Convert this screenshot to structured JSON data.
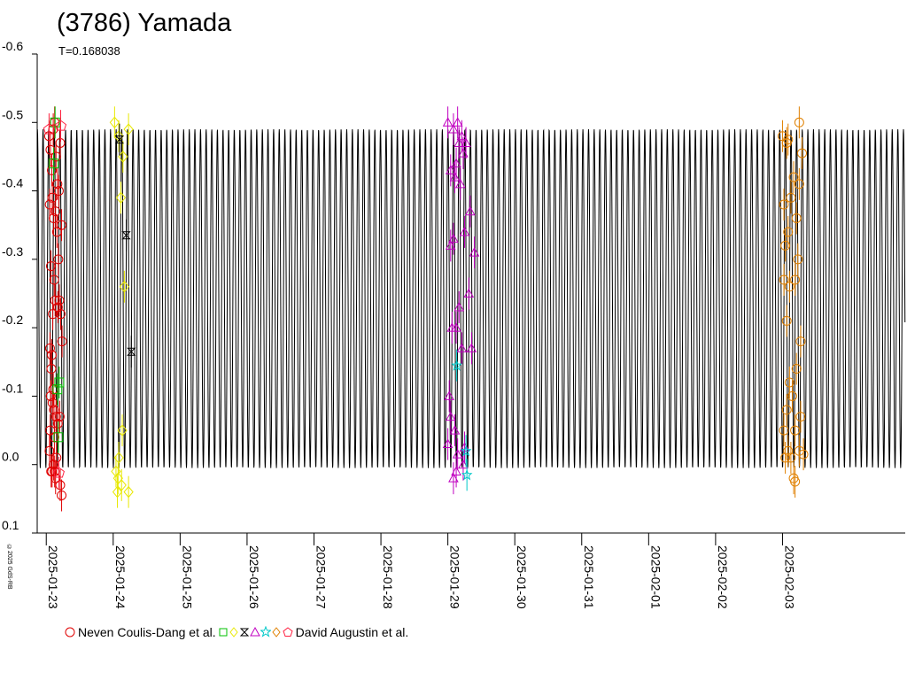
{
  "chart_data": {
    "type": "scatter",
    "title": "(3786) Yamada",
    "subtitle": "T=0.168038",
    "period_days": 0.168038,
    "x_domain": [
      "2025-01-22T20:45",
      "2025-02-04T20:00"
    ],
    "y_domain": [
      -0.6,
      0.1
    ],
    "y_ticks": [
      {
        "value": -0.6,
        "label": "-0.6"
      },
      {
        "value": -0.5,
        "label": "-0.5"
      },
      {
        "value": -0.4,
        "label": "-0.4"
      },
      {
        "value": -0.3,
        "label": "-0.3"
      },
      {
        "value": -0.2,
        "label": "-0.2"
      },
      {
        "value": -0.1,
        "label": "-0.1"
      },
      {
        "value": 0.0,
        "label": "0.0"
      },
      {
        "value": 0.1,
        "label": "0.1"
      }
    ],
    "x_ticks": [
      "2025-01-23",
      "2025-01-24",
      "2025-01-25",
      "2025-01-26",
      "2025-01-27",
      "2025-01-28",
      "2025-01-29",
      "2025-01-30",
      "2025-01-31",
      "2025-02-01",
      "2025-02-02",
      "2025-02-03"
    ],
    "model_curve": {
      "min": -0.49,
      "max": 0.005,
      "start": "2025-01-22T20:50",
      "end": "2025-02-04T19:55"
    },
    "series": [
      {
        "marker": "circle",
        "color": "#e00000",
        "points": [
          [
            "2025-01-23T01:00",
            -0.48
          ],
          [
            "2025-01-23T01:30",
            -0.46
          ],
          [
            "2025-01-23T02:00",
            -0.43
          ],
          [
            "2025-01-23T02:30",
            -0.49
          ],
          [
            "2025-01-23T03:00",
            -0.5
          ],
          [
            "2025-01-23T03:30",
            -0.45
          ],
          [
            "2025-01-23T04:00",
            -0.41
          ],
          [
            "2025-01-23T04:30",
            -0.4
          ],
          [
            "2025-01-23T05:00",
            -0.47
          ],
          [
            "2025-01-23T05:30",
            -0.35
          ],
          [
            "2025-01-23T01:15",
            -0.38
          ],
          [
            "2025-01-23T02:10",
            -0.39
          ],
          [
            "2025-01-23T02:40",
            -0.36
          ],
          [
            "2025-01-23T03:20",
            -0.37
          ],
          [
            "2025-01-23T03:50",
            -0.34
          ],
          [
            "2025-01-23T04:20",
            -0.3
          ],
          [
            "2025-01-23T01:40",
            -0.29
          ],
          [
            "2025-01-23T02:50",
            -0.27
          ],
          [
            "2025-01-23T03:10",
            -0.24
          ],
          [
            "2025-01-23T04:10",
            -0.23
          ],
          [
            "2025-01-23T02:20",
            -0.22
          ],
          [
            "2025-01-23T04:40",
            -0.24
          ],
          [
            "2025-01-23T05:10",
            -0.22
          ],
          [
            "2025-01-23T05:40",
            -0.18
          ],
          [
            "2025-01-23T01:20",
            -0.17
          ],
          [
            "2025-01-23T02:00",
            -0.16
          ],
          [
            "2025-01-23T01:50",
            -0.14
          ],
          [
            "2025-01-23T02:30",
            -0.11
          ],
          [
            "2025-01-23T01:35",
            -0.1
          ],
          [
            "2025-01-23T02:15",
            -0.09
          ],
          [
            "2025-01-23T02:45",
            -0.08
          ],
          [
            "2025-01-23T03:30",
            -0.07
          ],
          [
            "2025-01-23T04:10",
            -0.06
          ],
          [
            "2025-01-23T04:50",
            -0.07
          ],
          [
            "2025-01-23T01:25",
            -0.05
          ],
          [
            "2025-01-23T02:55",
            -0.04
          ],
          [
            "2025-01-23T01:10",
            -0.02
          ],
          [
            "2025-01-23T03:40",
            -0.01
          ],
          [
            "2025-01-23T01:45",
            0.01
          ],
          [
            "2025-01-23T02:05",
            0.01
          ],
          [
            "2025-01-23T02:35",
            0.0
          ],
          [
            "2025-01-23T03:00",
            0.01
          ],
          [
            "2025-01-23T03:20",
            0.02
          ],
          [
            "2025-01-23T05:00",
            0.03
          ],
          [
            "2025-01-23T05:30",
            0.045
          ]
        ]
      },
      {
        "marker": "square",
        "color": "#00c000",
        "points": [
          [
            "2025-01-23T03:10",
            -0.5
          ],
          [
            "2025-01-23T02:40",
            -0.44
          ],
          [
            "2025-01-23T04:00",
            -0.11
          ],
          [
            "2025-01-23T04:40",
            -0.12
          ],
          [
            "2025-01-23T04:20",
            -0.04
          ]
        ]
      },
      {
        "marker": "diamond",
        "color": "#e8e800",
        "points": [
          [
            "2025-01-24T00:30",
            -0.5
          ],
          [
            "2025-01-24T02:00",
            -0.48
          ],
          [
            "2025-01-24T03:30",
            -0.45
          ],
          [
            "2025-01-24T05:30",
            -0.49
          ],
          [
            "2025-01-24T02:45",
            -0.39
          ],
          [
            "2025-01-24T04:00",
            -0.26
          ],
          [
            "2025-01-24T03:15",
            -0.05
          ],
          [
            "2025-01-24T02:00",
            -0.01
          ],
          [
            "2025-01-24T01:00",
            0.01
          ],
          [
            "2025-01-24T01:45",
            0.02
          ],
          [
            "2025-01-24T03:00",
            0.03
          ],
          [
            "2025-01-24T01:30",
            0.04
          ],
          [
            "2025-01-24T05:30",
            0.04
          ]
        ]
      },
      {
        "marker": "hourglass",
        "color": "#000000",
        "points": [
          [
            "2025-01-24T02:15",
            -0.475
          ],
          [
            "2025-01-24T04:40",
            -0.335
          ],
          [
            "2025-01-24T06:30",
            -0.165
          ]
        ]
      },
      {
        "marker": "triangle",
        "color": "#c000c0",
        "points": [
          [
            "2025-01-29T00:00",
            -0.5
          ],
          [
            "2025-01-29T02:00",
            -0.49
          ],
          [
            "2025-01-29T03:30",
            -0.5
          ],
          [
            "2025-01-29T05:00",
            -0.48
          ],
          [
            "2025-01-29T06:30",
            -0.47
          ],
          [
            "2025-01-29T04:00",
            -0.47
          ],
          [
            "2025-01-29T05:30",
            -0.455
          ],
          [
            "2025-01-29T03:00",
            -0.44
          ],
          [
            "2025-01-29T01:00",
            -0.43
          ],
          [
            "2025-01-29T02:30",
            -0.42
          ],
          [
            "2025-01-29T04:30",
            -0.41
          ],
          [
            "2025-01-29T08:00",
            -0.37
          ],
          [
            "2025-01-29T02:00",
            -0.33
          ],
          [
            "2025-01-29T06:00",
            -0.34
          ],
          [
            "2025-01-29T01:00",
            -0.32
          ],
          [
            "2025-01-29T09:30",
            -0.31
          ],
          [
            "2025-01-29T07:30",
            -0.25
          ],
          [
            "2025-01-29T04:00",
            -0.23
          ],
          [
            "2025-01-29T01:30",
            -0.2
          ],
          [
            "2025-01-29T03:00",
            -0.2
          ],
          [
            "2025-01-29T05:00",
            -0.17
          ],
          [
            "2025-01-29T08:30",
            -0.17
          ],
          [
            "2025-01-29T00:30",
            -0.1
          ],
          [
            "2025-01-29T01:00",
            -0.07
          ],
          [
            "2025-01-29T02:30",
            -0.05
          ],
          [
            "2025-01-29T00:00",
            -0.03
          ],
          [
            "2025-01-29T06:00",
            -0.025
          ],
          [
            "2025-01-29T03:30",
            -0.015
          ],
          [
            "2025-01-29T05:30",
            0.0
          ],
          [
            "2025-01-29T03:00",
            0.01
          ],
          [
            "2025-01-29T02:00",
            0.02
          ]
        ]
      },
      {
        "marker": "star",
        "color": "#00c8c8",
        "points": [
          [
            "2025-01-29T03:10",
            -0.145
          ],
          [
            "2025-01-29T06:30",
            -0.02
          ],
          [
            "2025-01-29T06:50",
            0.015
          ]
        ]
      },
      {
        "marker": "pentagon",
        "color": "#ff2040",
        "points": [
          [
            "2025-01-23T01:00",
            -0.49
          ],
          [
            "2025-01-23T05:10",
            -0.495
          ],
          [
            "2025-01-23T04:30",
            0.012
          ]
        ]
      },
      {
        "marker": "circle",
        "color": "#e08000",
        "points": [
          [
            "2025-02-03T00:00",
            -0.48
          ],
          [
            "2025-02-03T01:30",
            -0.47
          ],
          [
            "2025-02-03T02:00",
            -0.475
          ],
          [
            "2025-02-03T06:00",
            -0.5
          ],
          [
            "2025-02-03T07:00",
            -0.455
          ],
          [
            "2025-02-03T04:00",
            -0.42
          ],
          [
            "2025-02-03T06:00",
            -0.41
          ],
          [
            "2025-02-03T03:00",
            -0.39
          ],
          [
            "2025-02-03T00:30",
            -0.38
          ],
          [
            "2025-02-03T05:00",
            -0.36
          ],
          [
            "2025-02-03T02:00",
            -0.34
          ],
          [
            "2025-02-03T01:00",
            -0.32
          ],
          [
            "2025-02-03T05:30",
            -0.3
          ],
          [
            "2025-02-03T00:30",
            -0.27
          ],
          [
            "2025-02-03T02:30",
            -0.26
          ],
          [
            "2025-02-03T04:30",
            -0.27
          ],
          [
            "2025-02-03T01:30",
            -0.21
          ],
          [
            "2025-02-03T06:30",
            -0.18
          ],
          [
            "2025-02-03T05:00",
            -0.14
          ],
          [
            "2025-02-03T02:30",
            -0.12
          ],
          [
            "2025-02-03T03:30",
            -0.1
          ],
          [
            "2025-02-03T01:30",
            -0.08
          ],
          [
            "2025-02-03T06:30",
            -0.07
          ],
          [
            "2025-02-03T00:30",
            -0.05
          ],
          [
            "2025-02-03T04:30",
            -0.05
          ],
          [
            "2025-02-03T02:00",
            -0.02
          ],
          [
            "2025-02-03T07:30",
            -0.015
          ],
          [
            "2025-02-03T03:00",
            -0.01
          ],
          [
            "2025-02-03T01:00",
            -0.01
          ],
          [
            "2025-02-03T06:00",
            -0.02
          ],
          [
            "2025-02-03T04:00",
            0.02
          ],
          [
            "2025-02-03T04:30",
            0.025
          ]
        ]
      }
    ],
    "legend": {
      "first": "Neven Coulis-Dang et al.",
      "last": "David Augustin et al."
    }
  },
  "copyright": "©2025 GdS-RB"
}
